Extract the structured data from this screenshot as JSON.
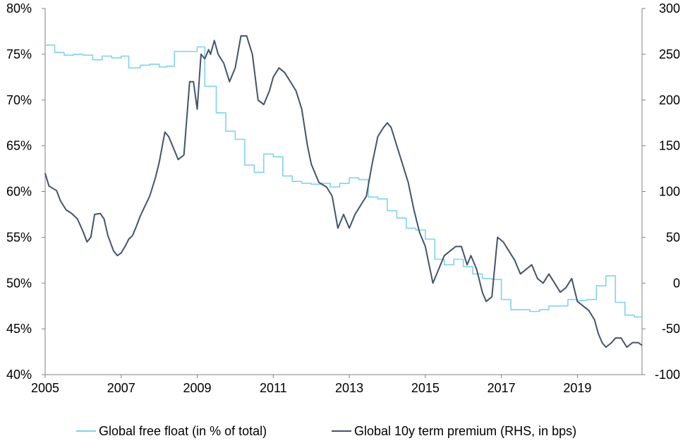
{
  "chart_data": {
    "type": "line",
    "title": "",
    "xlabel": "",
    "ylabel": "",
    "y2label": "",
    "xlim": [
      2005,
      2020.7
    ],
    "ylim": [
      40,
      80
    ],
    "y2lim": [
      -100,
      300
    ],
    "x_ticks": [
      2005,
      2007,
      2009,
      2011,
      2013,
      2015,
      2017,
      2019
    ],
    "x_tick_labels": [
      "2005",
      "2007",
      "2009",
      "2011",
      "2013",
      "2015",
      "2017",
      "2019"
    ],
    "y_ticks": [
      40,
      45,
      50,
      55,
      60,
      65,
      70,
      75,
      80
    ],
    "y_tick_labels": [
      "40%",
      "45%",
      "50%",
      "55%",
      "60%",
      "65%",
      "70%",
      "75%",
      "80%"
    ],
    "y2_ticks": [
      -100,
      -50,
      0,
      50,
      100,
      150,
      200,
      250,
      300
    ],
    "y2_tick_labels": [
      "-100",
      "-50",
      "0",
      "50",
      "100",
      "150",
      "200",
      "250",
      "300"
    ],
    "grid": false,
    "legend_position": "bottom",
    "series": [
      {
        "name": "Global free float (in % of total)",
        "axis": "left",
        "color": "#7FD3EE",
        "step": true,
        "x": [
          2005.0,
          2005.25,
          2005.5,
          2005.75,
          2006.0,
          2006.25,
          2006.5,
          2006.75,
          2007.0,
          2007.2,
          2007.5,
          2007.75,
          2008.0,
          2008.2,
          2008.4,
          2008.8,
          2009.0,
          2009.2,
          2009.5,
          2009.75,
          2010.0,
          2010.25,
          2010.5,
          2010.75,
          2011.0,
          2011.25,
          2011.5,
          2011.75,
          2012.0,
          2012.25,
          2012.5,
          2012.75,
          2013.0,
          2013.25,
          2013.5,
          2013.75,
          2014.0,
          2014.25,
          2014.5,
          2014.75,
          2015.0,
          2015.25,
          2015.5,
          2015.75,
          2016.0,
          2016.25,
          2016.5,
          2016.75,
          2017.0,
          2017.25,
          2017.5,
          2017.75,
          2018.0,
          2018.25,
          2018.5,
          2018.75,
          2019.0,
          2019.25,
          2019.5,
          2019.75,
          2020.0,
          2020.25,
          2020.5,
          2020.7
        ],
        "values": [
          76.0,
          75.2,
          74.9,
          75.0,
          74.9,
          74.4,
          74.8,
          74.6,
          74.8,
          73.5,
          73.8,
          73.9,
          73.6,
          73.7,
          75.3,
          75.3,
          75.8,
          71.5,
          68.6,
          66.6,
          65.7,
          62.9,
          62.1,
          64.1,
          63.8,
          61.7,
          61.1,
          60.9,
          60.8,
          60.9,
          60.5,
          60.9,
          61.5,
          61.3,
          59.4,
          59.2,
          57.9,
          57.1,
          56.0,
          55.8,
          54.8,
          52.6,
          52.0,
          52.6,
          51.8,
          51.0,
          50.5,
          50.4,
          48.2,
          47.1,
          47.1,
          46.9,
          47.1,
          47.5,
          47.5,
          48.2,
          48.1,
          48.2,
          49.7,
          50.8,
          47.9,
          46.5,
          46.3,
          46.2
        ]
      },
      {
        "name": "Global 10y term premium (RHS, in bps)",
        "axis": "right",
        "color": "#44546A",
        "step": false,
        "x": [
          2005.0,
          2005.1,
          2005.3,
          2005.4,
          2005.55,
          2005.7,
          2005.85,
          2006.0,
          2006.1,
          2006.2,
          2006.3,
          2006.45,
          2006.55,
          2006.65,
          2006.8,
          2006.9,
          2007.0,
          2007.1,
          2007.2,
          2007.3,
          2007.4,
          2007.5,
          2007.6,
          2007.75,
          2007.9,
          2008.0,
          2008.15,
          2008.25,
          2008.35,
          2008.5,
          2008.65,
          2008.8,
          2008.9,
          2009.0,
          2009.1,
          2009.2,
          2009.3,
          2009.35,
          2009.45,
          2009.55,
          2009.7,
          2009.85,
          2010.0,
          2010.15,
          2010.3,
          2010.45,
          2010.6,
          2010.75,
          2010.9,
          2011.0,
          2011.15,
          2011.3,
          2011.45,
          2011.6,
          2011.75,
          2011.9,
          2012.0,
          2012.2,
          2012.4,
          2012.55,
          2012.7,
          2012.85,
          2013.0,
          2013.15,
          2013.3,
          2013.45,
          2013.6,
          2013.75,
          2013.9,
          2014.0,
          2014.1,
          2014.25,
          2014.4,
          2014.55,
          2014.7,
          2014.85,
          2015.0,
          2015.1,
          2015.2,
          2015.35,
          2015.5,
          2015.65,
          2015.8,
          2015.95,
          2016.1,
          2016.2,
          2016.35,
          2016.5,
          2016.6,
          2016.75,
          2016.9,
          2017.05,
          2017.2,
          2017.35,
          2017.5,
          2017.65,
          2017.8,
          2017.95,
          2018.1,
          2018.25,
          2018.4,
          2018.55,
          2018.7,
          2018.85,
          2019.0,
          2019.15,
          2019.3,
          2019.45,
          2019.55,
          2019.65,
          2019.75,
          2019.9,
          2020.0,
          2020.15,
          2020.3,
          2020.45,
          2020.6,
          2020.7
        ],
        "values": [
          120,
          106,
          101,
          90,
          80,
          76,
          70,
          56,
          45,
          50,
          75,
          76,
          70,
          52,
          35,
          30,
          33,
          40,
          48,
          52,
          62,
          73,
          82,
          95,
          115,
          132,
          165,
          160,
          150,
          135,
          140,
          220,
          220,
          190,
          250,
          245,
          255,
          250,
          265,
          250,
          240,
          220,
          235,
          270,
          270,
          250,
          200,
          195,
          210,
          225,
          235,
          230,
          220,
          210,
          190,
          150,
          130,
          110,
          105,
          95,
          60,
          75,
          60,
          75,
          85,
          95,
          130,
          160,
          170,
          175,
          170,
          150,
          130,
          110,
          80,
          55,
          40,
          20,
          0,
          15,
          30,
          35,
          40,
          40,
          20,
          30,
          15,
          -10,
          -20,
          -15,
          50,
          45,
          35,
          25,
          10,
          15,
          20,
          5,
          0,
          10,
          0,
          -10,
          -5,
          5,
          -20,
          -25,
          -30,
          -40,
          -55,
          -65,
          -70,
          -65,
          -60,
          -60,
          -70,
          -65,
          -65,
          -68
        ]
      }
    ]
  },
  "legend": {
    "items": [
      {
        "label": "Global free float (in % of total)",
        "color": "#7FD3EE"
      },
      {
        "label": "Global 10y term premium (RHS, in bps)",
        "color": "#44546A"
      }
    ]
  }
}
